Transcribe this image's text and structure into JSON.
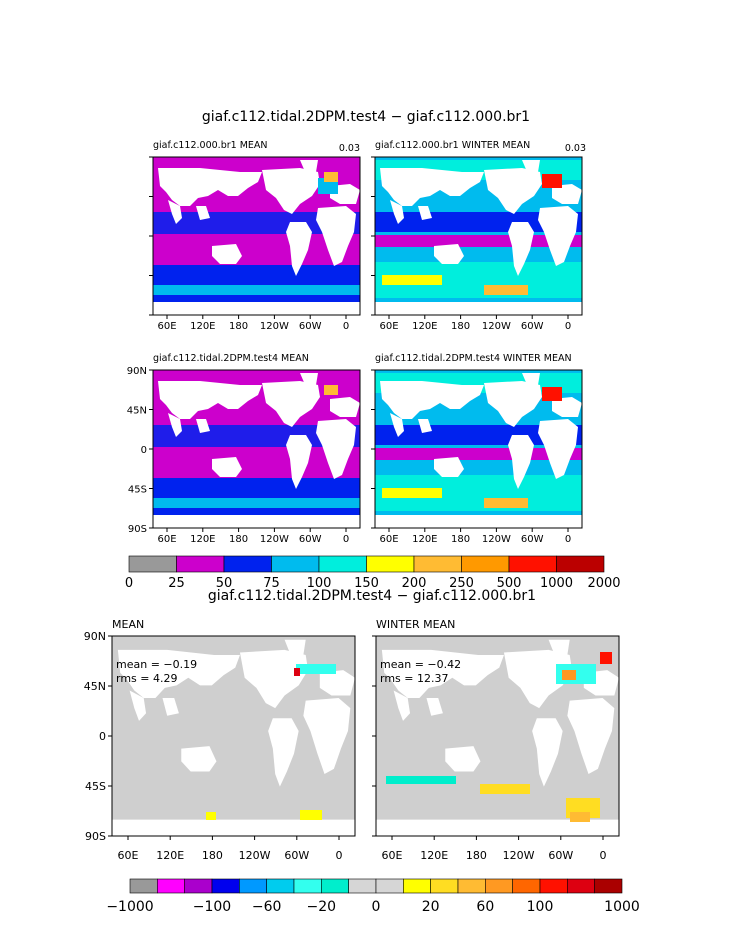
{
  "colors": {
    "land": "#ffffff",
    "diff_ocean": "#cfcfcf",
    "top_scale": [
      "#999999",
      "#cc00cc",
      "#0022ee",
      "#00bbee",
      "#00eedd",
      "#ffff00",
      "#ffbb33",
      "#ff9900",
      "#ff1100",
      "#bb0000"
    ],
    "bottom_scale": [
      "#999999",
      "#ff00ff",
      "#aa00cc",
      "#0000ee",
      "#0099ff",
      "#00ccee",
      "#33ffee",
      "#00eecc",
      "#d6d6d6",
      "#d6d6d6",
      "#ffff00",
      "#ffdd22",
      "#ffbb33",
      "#ff9922",
      "#ff6600",
      "#ff1100",
      "#dd0011",
      "#aa0000"
    ]
  },
  "chart_data": [
    {
      "type": "heatmap",
      "title": "giaf.c112.tidal.2DPM.test4 − giaf.c112.000.br1",
      "panels": [
        {
          "id": "p1",
          "label": "giaf.c112.000.br1  MEAN",
          "corner_value": "0.03",
          "show_y_ticks": false
        },
        {
          "id": "p2",
          "label": "giaf.c112.000.br1  WINTER MEAN",
          "corner_value": "0.03",
          "show_y_ticks": false
        },
        {
          "id": "p3",
          "label": "giaf.c112.tidal.2DPM.test4  MEAN",
          "corner_value": "",
          "show_y_ticks": true
        },
        {
          "id": "p4",
          "label": "giaf.c112.tidal.2DPM.test4  WINTER MEAN",
          "corner_value": "",
          "show_y_ticks": true
        }
      ],
      "x_ticks": [
        "60E",
        "120E",
        "180",
        "120W",
        "60W",
        "0"
      ],
      "y_ticks": [
        "90N",
        "45N",
        "0",
        "45S",
        "90S"
      ],
      "colorbar_labels": [
        "0",
        "25",
        "50",
        "75",
        "100",
        "150",
        "200",
        "250",
        "500",
        "1000",
        "2000"
      ]
    },
    {
      "type": "heatmap",
      "title": "giaf.c112.tidal.2DPM.test4 − giaf.c112.000.br1",
      "panels": [
        {
          "id": "d1",
          "label": "MEAN",
          "mean": "mean = −0.19",
          "rms": "rms = 4.29"
        },
        {
          "id": "d2",
          "label": "WINTER MEAN",
          "mean": "mean = −0.42",
          "rms": "rms = 12.37"
        }
      ],
      "x_ticks": [
        "60E",
        "120E",
        "180",
        "120W",
        "60W",
        "0"
      ],
      "y_ticks": [
        "90N",
        "45N",
        "0",
        "45S",
        "90S"
      ],
      "colorbar_labels": [
        "−1000",
        "−100",
        "−60",
        "−20",
        "0",
        "20",
        "60",
        "100",
        "1000"
      ]
    }
  ]
}
